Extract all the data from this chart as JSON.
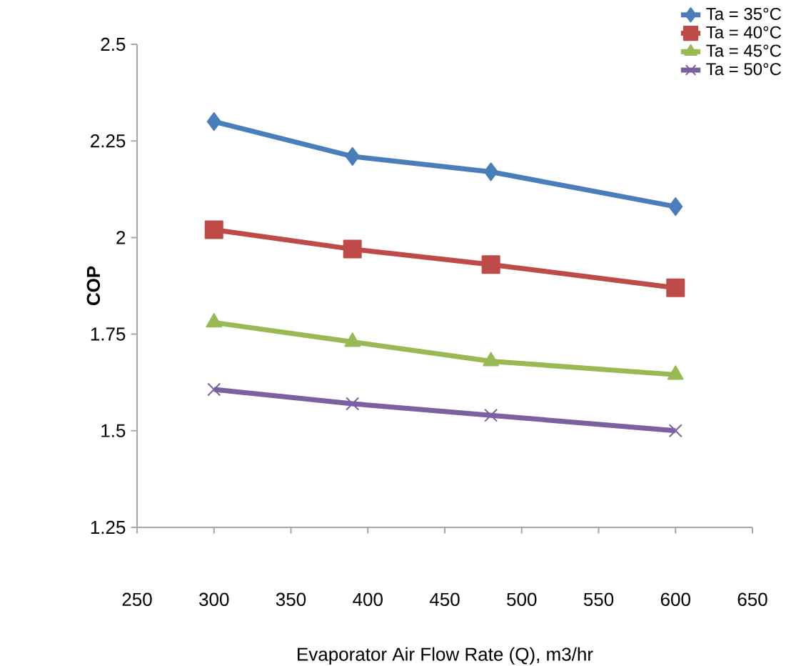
{
  "chart_data": {
    "type": "line",
    "xlabel": "Evaporator Air Flow Rate (Q), m3/hr",
    "ylabel": "COP",
    "xlim": [
      250,
      650
    ],
    "xticks": [
      250,
      300,
      350,
      400,
      450,
      500,
      550,
      600,
      650
    ],
    "ylim": [
      1.25,
      2.5
    ],
    "yticks": [
      1.25,
      1.5,
      1.75,
      2,
      2.25,
      2.5
    ],
    "grid": false,
    "legend": "top right",
    "line_style": "solid",
    "series": [
      {
        "name": "Ta = 35°C",
        "color": "#4a7ebb",
        "marker": "diamond",
        "x": [
          300,
          390,
          480,
          600
        ],
        "values": [
          2.3,
          2.21,
          2.17,
          2.08
        ]
      },
      {
        "name": "Ta = 40°C",
        "color": "#be4b48",
        "marker": "square",
        "x": [
          300,
          390,
          480,
          600
        ],
        "values": [
          2.02,
          1.97,
          1.93,
          1.87
        ]
      },
      {
        "name": "Ta = 45°C",
        "color": "#98b954",
        "marker": "triangle",
        "x": [
          300,
          390,
          480,
          600
        ],
        "values": [
          1.78,
          1.73,
          1.68,
          1.645
        ]
      },
      {
        "name": "Ta = 50°C",
        "color": "#7d60a0",
        "marker": "cross",
        "x": [
          300,
          390,
          480,
          600
        ],
        "values": [
          1.607,
          1.57,
          1.54,
          1.5
        ]
      }
    ]
  }
}
